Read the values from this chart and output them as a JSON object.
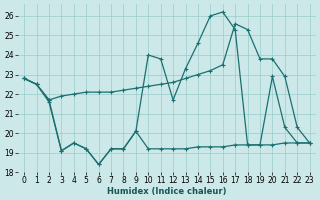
{
  "xlabel": "Humidex (Indice chaleur)",
  "background_color": "#cce8e8",
  "grid_color": "#99cccc",
  "line_color": "#1a7070",
  "xlim": [
    -0.5,
    23.5
  ],
  "ylim": [
    18,
    26.6
  ],
  "yticks": [
    18,
    19,
    20,
    21,
    22,
    23,
    24,
    25,
    26
  ],
  "xtick_labels": [
    "0",
    "1",
    "2",
    "3",
    "4",
    "5",
    "6",
    "7",
    "8",
    "9",
    "10",
    "11",
    "12",
    "13",
    "14",
    "15",
    "16",
    "17",
    "18",
    "19",
    "20",
    "21",
    "22",
    "23"
  ],
  "line1_x": [
    0,
    1,
    2,
    3,
    4,
    5,
    6,
    7,
    8,
    9,
    10,
    11,
    12,
    13,
    14,
    15,
    16,
    17,
    18,
    19,
    20,
    21,
    22,
    23
  ],
  "line1_y": [
    22.8,
    22.5,
    21.6,
    19.1,
    19.5,
    19.2,
    18.4,
    19.2,
    19.2,
    20.1,
    24.0,
    23.8,
    21.7,
    23.3,
    24.6,
    26.0,
    26.2,
    25.3,
    19.4,
    19.4,
    22.9,
    20.3,
    19.5,
    19.5
  ],
  "line2_x": [
    0,
    1,
    2,
    3,
    4,
    5,
    6,
    7,
    8,
    9,
    10,
    11,
    12,
    13,
    14,
    15,
    16,
    17,
    18,
    19,
    20,
    21,
    22,
    23
  ],
  "line2_y": [
    22.8,
    22.5,
    21.7,
    21.9,
    22.0,
    22.1,
    22.1,
    22.1,
    22.2,
    22.3,
    22.4,
    22.5,
    22.6,
    22.8,
    23.0,
    23.2,
    23.5,
    25.6,
    25.3,
    23.8,
    23.8,
    22.9,
    20.3,
    19.5
  ],
  "line3_x": [
    0,
    1,
    2,
    3,
    4,
    5,
    6,
    7,
    8,
    9,
    10,
    11,
    12,
    13,
    14,
    15,
    16,
    17,
    18,
    19,
    20,
    21,
    22,
    23
  ],
  "line3_y": [
    22.8,
    22.5,
    21.7,
    19.1,
    19.5,
    19.2,
    18.4,
    19.2,
    19.2,
    20.1,
    19.2,
    19.2,
    19.2,
    19.2,
    19.3,
    19.3,
    19.3,
    19.4,
    19.4,
    19.4,
    19.4,
    19.5,
    19.5,
    19.5
  ]
}
